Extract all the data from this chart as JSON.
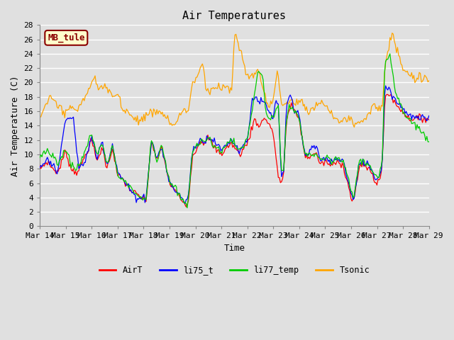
{
  "title": "Air Temperatures",
  "xlabel": "Time",
  "ylabel": "Air Temperature (C)",
  "annotation": "MB_tule",
  "annotation_color": "#8B0000",
  "annotation_bg": "#FFFFCC",
  "ylim": [
    0,
    28
  ],
  "yticks": [
    0,
    2,
    4,
    6,
    8,
    10,
    12,
    14,
    16,
    18,
    20,
    22,
    24,
    26,
    28
  ],
  "xtick_labels": [
    "Mar 14",
    "Mar 15",
    "Mar 16",
    "Mar 17",
    "Mar 18",
    "Mar 19",
    "Mar 20",
    "Mar 21",
    "Mar 22",
    "Mar 23",
    "Mar 24",
    "Mar 25",
    "Mar 26",
    "Mar 27",
    "Mar 28",
    "Mar 29"
  ],
  "legend_labels": [
    "AirT",
    "li75_t",
    "li77_temp",
    "Tsonic"
  ],
  "legend_colors": [
    "#FF0000",
    "#0000FF",
    "#00CC00",
    "#FFA500"
  ],
  "bg_color": "#E0E0E0",
  "grid_color": "#FFFFFF",
  "font_family": "monospace",
  "title_fontsize": 11,
  "axis_fontsize": 8,
  "label_fontsize": 9
}
